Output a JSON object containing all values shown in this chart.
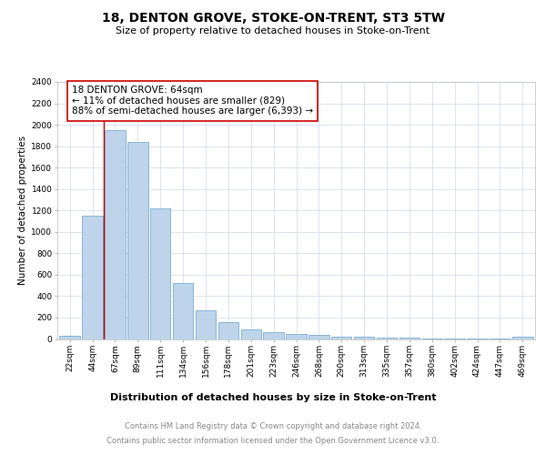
{
  "title": "18, DENTON GROVE, STOKE-ON-TRENT, ST3 5TW",
  "subtitle": "Size of property relative to detached houses in Stoke-on-Trent",
  "xlabel": "Distribution of detached houses by size in Stoke-on-Trent",
  "ylabel": "Number of detached properties",
  "categories": [
    "22sqm",
    "44sqm",
    "67sqm",
    "89sqm",
    "111sqm",
    "134sqm",
    "156sqm",
    "178sqm",
    "201sqm",
    "223sqm",
    "246sqm",
    "268sqm",
    "290sqm",
    "313sqm",
    "335sqm",
    "357sqm",
    "380sqm",
    "402sqm",
    "424sqm",
    "447sqm",
    "469sqm"
  ],
  "values": [
    30,
    1150,
    1950,
    1840,
    1220,
    520,
    270,
    155,
    90,
    60,
    50,
    40,
    20,
    22,
    10,
    10,
    8,
    8,
    5,
    5,
    22
  ],
  "bar_color": "#bdd4ea",
  "bar_edge_color": "#7aadd4",
  "vline_x": 1.5,
  "vline_color": "#cc0000",
  "annotation_text": "18 DENTON GROVE: 64sqm\n← 11% of detached houses are smaller (829)\n88% of semi-detached houses are larger (6,393) →",
  "annotation_box_color": "#ffffff",
  "annotation_box_edge": "#cc0000",
  "ylim": [
    0,
    2400
  ],
  "yticks": [
    0,
    200,
    400,
    600,
    800,
    1000,
    1200,
    1400,
    1600,
    1800,
    2000,
    2200,
    2400
  ],
  "footer_line1": "Contains HM Land Registry data © Crown copyright and database right 2024.",
  "footer_line2": "Contains public sector information licensed under the Open Government Licence v3.0.",
  "title_fontsize": 10,
  "subtitle_fontsize": 8,
  "xlabel_fontsize": 8,
  "ylabel_fontsize": 7.5,
  "tick_fontsize": 6.5,
  "annotation_fontsize": 7.5,
  "footer_fontsize": 6,
  "grid_color": "#d0d8e8",
  "background_color": "#ffffff"
}
